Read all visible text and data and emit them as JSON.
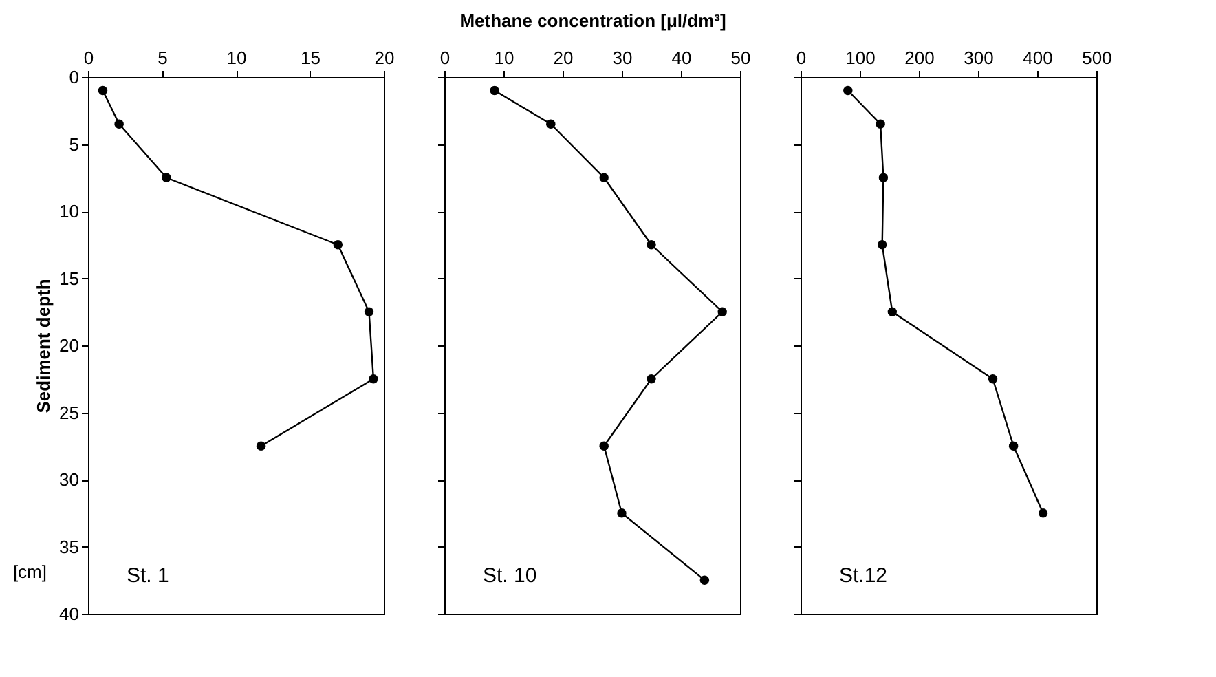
{
  "chart_data": [
    {
      "type": "line",
      "ylabel": "Sediment depth",
      "annotations": [
        "St. 1",
        "[cm]"
      ],
      "marker": "circle",
      "line_style": "solid",
      "grid": false,
      "xlim": [
        0,
        20
      ],
      "xticks": [
        0,
        5,
        10,
        15,
        20
      ],
      "ylim": [
        40,
        0
      ],
      "yticks": [
        0,
        5,
        10,
        15,
        20,
        25,
        30,
        35,
        40
      ],
      "series": [
        {
          "color": "#000000",
          "x": [
            1.0,
            2.1,
            5.3,
            16.9,
            19.0,
            19.3,
            11.7
          ],
          "values": [
            1,
            3.5,
            7.5,
            12.5,
            17.5,
            22.5,
            27.5
          ]
        }
      ]
    },
    {
      "type": "line",
      "xlabel": "Methane concentration [μl/dm³]",
      "annotations": [
        "St. 10"
      ],
      "marker": "circle",
      "line_style": "solid",
      "grid": false,
      "tick_labels": "x",
      "xlim": [
        0,
        50
      ],
      "xticks": [
        0,
        10,
        20,
        30,
        40,
        50
      ],
      "ylim": [
        40,
        0
      ],
      "yticks": [
        0,
        5,
        10,
        15,
        20,
        25,
        30,
        35,
        40
      ],
      "series": [
        {
          "color": "#000000",
          "x": [
            8.5,
            18,
            27,
            35,
            47,
            35,
            27,
            30,
            44
          ],
          "values": [
            1,
            3.5,
            7.5,
            12.5,
            17.5,
            22.5,
            27.5,
            32.5,
            37.5
          ]
        }
      ]
    },
    {
      "type": "line",
      "annotations": [
        "St.12"
      ],
      "marker": "circle",
      "line_style": "solid",
      "grid": false,
      "tick_labels": "x",
      "xlim": [
        0,
        500
      ],
      "xticks": [
        0,
        100,
        200,
        300,
        400,
        500
      ],
      "ylim": [
        40,
        0
      ],
      "yticks": [
        0,
        5,
        10,
        15,
        20,
        25,
        30,
        35,
        40
      ],
      "series": [
        {
          "color": "#000000",
          "x": [
            80,
            135,
            140,
            138,
            155,
            325,
            360,
            410
          ],
          "values": [
            1,
            3.5,
            7.5,
            12.5,
            17.5,
            22.5,
            27.5,
            32.5
          ]
        }
      ]
    }
  ]
}
